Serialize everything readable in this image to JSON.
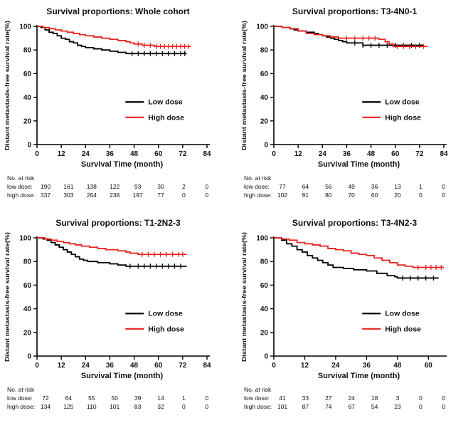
{
  "figure": {
    "risk_header": "No. at risk",
    "colors": {
      "low_dose": "#000000",
      "high_dose": "#e8231f"
    },
    "legend": [
      "Low dose",
      "High dose"
    ]
  },
  "chart_data": [
    {
      "type": "line",
      "subtype": "kaplan-meier-step",
      "title": "Survival proportions: Whole cohort",
      "xlabel": "Survival Time (month)",
      "ylabel": "Distant metastasis-free survival rate(%)",
      "xlim": [
        0,
        84
      ],
      "ylim": [
        0,
        100
      ],
      "xticks": [
        0,
        12,
        24,
        36,
        48,
        60,
        72,
        84
      ],
      "yticks": [
        0,
        20,
        40,
        60,
        80,
        100
      ],
      "grid": false,
      "legend_position": "inside-center-right",
      "series": [
        {
          "name": "Low dose",
          "color": "#000000",
          "x": [
            0,
            2,
            4,
            6,
            8,
            10,
            12,
            14,
            16,
            18,
            20,
            22,
            24,
            28,
            32,
            36,
            40,
            44,
            74
          ],
          "y": [
            100,
            99,
            97,
            95,
            94,
            92,
            90,
            89,
            87,
            86,
            84,
            83,
            82,
            81,
            80,
            79,
            78,
            77,
            77
          ],
          "censor_x": [
            47,
            50,
            53,
            56,
            59,
            62,
            65,
            68,
            71,
            73
          ]
        },
        {
          "name": "High dose",
          "color": "#e8231f",
          "x": [
            0,
            3,
            6,
            9,
            12,
            15,
            18,
            21,
            24,
            28,
            32,
            36,
            40,
            44,
            46,
            48,
            52,
            58,
            76
          ],
          "y": [
            100,
            99,
            98,
            97,
            96,
            95,
            94,
            93,
            92,
            91,
            90,
            89,
            88,
            87,
            86,
            85,
            84,
            83,
            83
          ],
          "censor_x": [
            50,
            53,
            56,
            59,
            61,
            63,
            65,
            67,
            69,
            71,
            73,
            75
          ]
        }
      ],
      "at_risk": [
        {
          "label": "low dose:",
          "values": [
            190,
            161,
            138,
            122,
            93,
            30,
            2,
            0
          ]
        },
        {
          "label": "high dose:",
          "values": [
            337,
            303,
            264,
            238,
            197,
            77,
            0,
            0
          ]
        }
      ]
    },
    {
      "type": "line",
      "subtype": "kaplan-meier-step",
      "title": "Survival proportions: T3-4N0-1",
      "xlabel": "Survival Time (month)",
      "ylabel": "Distant metastasis-free survival rate(%)",
      "xlim": [
        0,
        84
      ],
      "ylim": [
        0,
        100
      ],
      "xticks": [
        0,
        12,
        24,
        36,
        48,
        60,
        72,
        84
      ],
      "yticks": [
        0,
        20,
        40,
        60,
        80,
        100
      ],
      "grid": false,
      "legend_position": "inside-center-right",
      "series": [
        {
          "name": "Low dose",
          "color": "#000000",
          "x": [
            0,
            4,
            8,
            10,
            12,
            16,
            20,
            22,
            24,
            26,
            28,
            30,
            32,
            34,
            36,
            44,
            74
          ],
          "y": [
            100,
            99,
            98,
            97,
            96,
            95,
            94,
            93,
            92,
            91,
            90,
            89,
            88,
            87,
            86,
            84,
            84
          ],
          "censor_x": [
            40,
            44,
            48,
            52,
            56,
            60,
            64,
            68,
            72
          ]
        },
        {
          "name": "High dose",
          "color": "#e8231f",
          "x": [
            0,
            4,
            8,
            12,
            16,
            20,
            24,
            28,
            32,
            52,
            55,
            57,
            59,
            76
          ],
          "y": [
            100,
            99,
            98,
            96,
            94,
            93,
            92,
            91,
            90,
            89,
            87,
            85,
            83,
            83
          ],
          "censor_x": [
            36,
            40,
            44,
            47,
            50,
            61,
            64,
            67,
            70,
            74
          ]
        }
      ],
      "at_risk": [
        {
          "label": "low dose:",
          "values": [
            77,
            64,
            56,
            49,
            36,
            13,
            1,
            0
          ]
        },
        {
          "label": "high dose:",
          "values": [
            102,
            91,
            80,
            70,
            60,
            20,
            0,
            0
          ]
        }
      ]
    },
    {
      "type": "line",
      "subtype": "kaplan-meier-step",
      "title": "Survival proportions: T1-2N2-3",
      "xlabel": "Survival Time (month)",
      "ylabel": "Distant metastasis-free survival rate(%)",
      "xlim": [
        0,
        84
      ],
      "ylim": [
        0,
        100
      ],
      "xticks": [
        0,
        12,
        24,
        36,
        48,
        60,
        72,
        84
      ],
      "yticks": [
        0,
        20,
        40,
        60,
        80,
        100
      ],
      "grid": false,
      "legend_position": "inside-center-right",
      "series": [
        {
          "name": "Low dose",
          "color": "#000000",
          "x": [
            0,
            3,
            5,
            7,
            9,
            11,
            13,
            15,
            17,
            19,
            21,
            23,
            25,
            30,
            36,
            40,
            44,
            74
          ],
          "y": [
            100,
            99,
            98,
            96,
            94,
            92,
            90,
            88,
            86,
            84,
            82,
            81,
            80,
            79,
            78,
            77,
            76,
            76
          ],
          "censor_x": [
            46,
            50,
            53,
            56,
            59,
            62,
            65,
            68,
            71
          ]
        },
        {
          "name": "High dose",
          "color": "#e8231f",
          "x": [
            0,
            4,
            7,
            10,
            13,
            16,
            19,
            22,
            26,
            30,
            34,
            40,
            44,
            46,
            50,
            74
          ],
          "y": [
            100,
            99,
            98,
            97,
            96,
            95,
            94,
            93,
            92,
            91,
            90,
            89,
            88,
            87,
            86,
            86
          ],
          "censor_x": [
            52,
            55,
            58,
            61,
            64,
            67,
            70,
            72
          ]
        }
      ],
      "at_risk": [
        {
          "label": "low dose:",
          "values": [
            72,
            64,
            55,
            50,
            39,
            14,
            1,
            0
          ]
        },
        {
          "label": "high dose:",
          "values": [
            134,
            125,
            110,
            101,
            83,
            32,
            0,
            0
          ]
        }
      ]
    },
    {
      "type": "line",
      "subtype": "kaplan-meier-step",
      "title": "Survival proportions: T3-4N2-3",
      "xlabel": "Survival Time (month)",
      "ylabel": "Distant metastasis-free survival rate(%)",
      "xlim": [
        0,
        66
      ],
      "ylim": [
        0,
        100
      ],
      "xticks": [
        0,
        12,
        24,
        36,
        48,
        60
      ],
      "yticks": [
        0,
        20,
        40,
        60,
        80,
        100
      ],
      "grid": false,
      "legend_position": "inside-center-right",
      "series": [
        {
          "name": "Low dose",
          "color": "#000000",
          "x": [
            0,
            3,
            5,
            7,
            9,
            11,
            13,
            15,
            17,
            19,
            21,
            23,
            27,
            31,
            36,
            40,
            44,
            47,
            48,
            64
          ],
          "y": [
            100,
            98,
            95,
            93,
            90,
            88,
            85,
            83,
            81,
            79,
            77,
            75,
            74,
            73,
            72,
            70,
            68,
            67,
            66,
            66
          ],
          "censor_x": [
            50,
            53,
            56,
            59,
            62
          ]
        },
        {
          "name": "High dose",
          "color": "#e8231f",
          "x": [
            0,
            3,
            6,
            9,
            12,
            15,
            18,
            21,
            24,
            27,
            30,
            33,
            36,
            39,
            42,
            45,
            48,
            51,
            54,
            66
          ],
          "y": [
            100,
            99,
            98,
            96,
            95,
            94,
            93,
            91,
            90,
            89,
            87,
            86,
            85,
            83,
            81,
            79,
            77,
            76,
            75,
            75
          ],
          "censor_x": [
            56,
            59,
            61,
            63,
            65
          ]
        }
      ],
      "at_risk": [
        {
          "label": "low dose:",
          "values": [
            41,
            33,
            27,
            24,
            18,
            3,
            0,
            0
          ]
        },
        {
          "label": "high dose:",
          "values": [
            101,
            87,
            74,
            67,
            54,
            23,
            0,
            0
          ]
        }
      ]
    }
  ]
}
